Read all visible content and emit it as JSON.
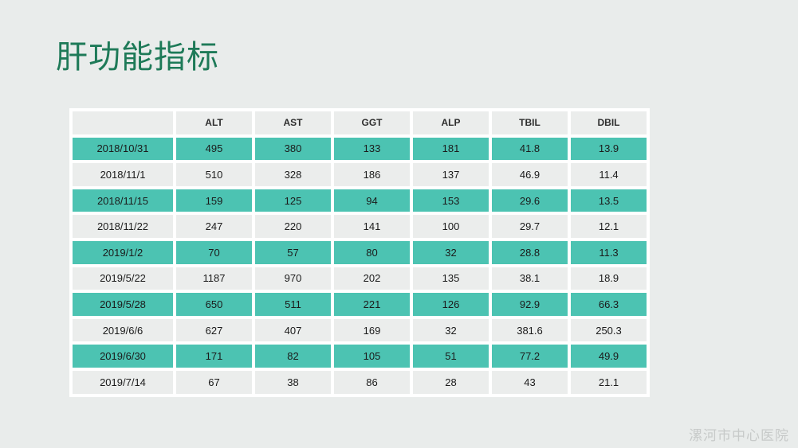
{
  "slide": {
    "title": "肝功能指标",
    "watermark": "漯河市中心医院"
  },
  "colors": {
    "background": "#e9eceb",
    "accent_teal": "#4cc3b2",
    "light_cell": "#ebedec",
    "grid_white": "#ffffff",
    "title_green": "#1e7a58",
    "watermark_gray": "#c7cac9"
  },
  "chart_data": {
    "type": "table",
    "columns": [
      "",
      "ALT",
      "AST",
      "GGT",
      "ALP",
      "TBIL",
      "DBIL"
    ],
    "rows": [
      [
        "2018/10/31",
        "495",
        "380",
        "133",
        "181",
        "41.8",
        "13.9"
      ],
      [
        "2018/11/1",
        "510",
        "328",
        "186",
        "137",
        "46.9",
        "11.4"
      ],
      [
        "2018/11/15",
        "159",
        "125",
        "94",
        "153",
        "29.6",
        "13.5"
      ],
      [
        "2018/11/22",
        "247",
        "220",
        "141",
        "100",
        "29.7",
        "12.1"
      ],
      [
        "2019/1/2",
        "70",
        "57",
        "80",
        "32",
        "28.8",
        "11.3"
      ],
      [
        "2019/5/22",
        "1187",
        "970",
        "202",
        "135",
        "38.1",
        "18.9"
      ],
      [
        "2019/5/28",
        "650",
        "511",
        "221",
        "126",
        "92.9",
        "66.3"
      ],
      [
        "2019/6/6",
        "627",
        "407",
        "169",
        "32",
        "381.6",
        "250.3"
      ],
      [
        "2019/6/30",
        "171",
        "82",
        "105",
        "51",
        "77.2",
        "49.9"
      ],
      [
        "2019/7/14",
        "67",
        "38",
        "86",
        "28",
        "43",
        "21.1"
      ]
    ],
    "banding": "first data row teal, alternating with light gray",
    "grid": "white 4px separators",
    "legend_position": "none"
  }
}
